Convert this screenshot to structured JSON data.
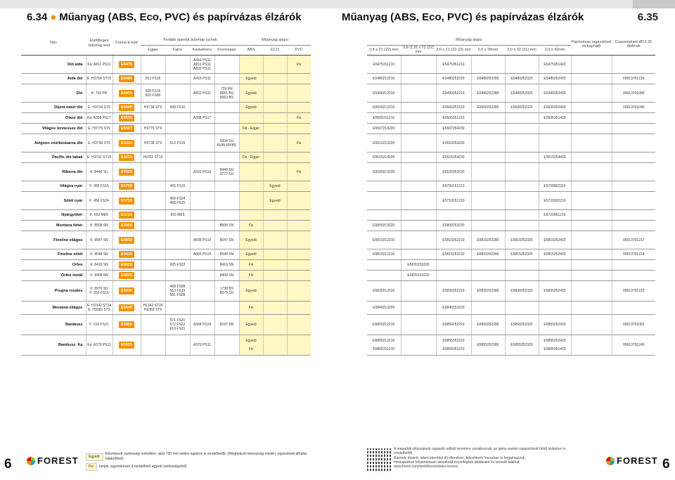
{
  "header": {
    "title_left": "Műanyag (ABS, Eco, PVC) és papírvázas élzárók",
    "section_left": "6.34",
    "title_right": "Műanyag (ABS, Eco, PVC) és papírvázas élzárók",
    "section_right": "6.35"
  },
  "left_head": {
    "nev": "Név",
    "elsodleges": "Elsődleges bútorlap kód",
    "forest": "Forest E-kód",
    "tovabbi": "További ajánlott bútorlap színek",
    "muanyag": "Műanyag alapú",
    "egger": "Egger",
    "falco": "Falco",
    "kastamonu": "Kastamonu",
    "kronospan": "Kronospan",
    "abs": "ABS",
    "eco": "ECO",
    "pvc": "PVC"
  },
  "right_head": {
    "muanyag": "Műanyag alapú",
    "c1": "0,4 x 21 (22) mm",
    "c2": "0,8 (1,0) x 21 (22) mm",
    "c3": "2,0 x 21 (22-23) mm",
    "c4": "2,0 x 28mm",
    "c5": "2,0 x 32 (31) mm",
    "c6": "2,0 x 42mm",
    "papir": "Papírvázas ragasztóval és kaphatő",
    "csavar": "Csavartakaró Ø13 25 db/levél"
  },
  "rows": [
    {
      "name": "Dió aida",
      "primary": "Ka: A811 PS11",
      "code": "E5475",
      "egger": "",
      "falco": "",
      "kasta": "A416 PS11\nA811 PS11\nA822 PS11",
      "krono": "",
      "abs": "",
      "eco": "",
      "pvc": "Fix",
      "c1": "E5475311210",
      "c2": "",
      "c3": "E5475351210",
      "c4": "",
      "c5": "",
      "c6": "E5475351420",
      "pap": "",
      "csav": ""
    },
    {
      "name": "Aida dió",
      "primary": "E: H3704 ST15",
      "code": "E5480",
      "egger": "512 FS15",
      "falco": "",
      "kasta": "A416 PS11",
      "krono": "",
      "abs": "Egyedi",
      "eco": "",
      "pvc": "",
      "c1": "E5480212210",
      "c2": "",
      "c3": "E5480252210",
      "c4": "E5480252280",
      "c5": "E5480252320",
      "c6": "E5480252420",
      "pap": "",
      "csav": "00013701216"
    },
    {
      "name": "Dió",
      "primary": "K: 729 PR",
      "code": "E5490",
      "egger": "508 FS15\n600 FS50",
      "falco": "",
      "kasta": "A822 PS11",
      "krono": "729 PR\n8061 BS\n8953 BS",
      "abs": "Egyedi",
      "eco": "",
      "pvc": "",
      "c1": "E5490212210",
      "c2": "",
      "c3": "E5490252210",
      "c4": "E5490252280",
      "c5": "E5490252320",
      "c6": "E5490252420",
      "pap": "",
      "csav": "00013701080"
    },
    {
      "name": "Dijoni natúr dió",
      "primary": "E: H3734 ST9",
      "code": "E5500",
      "egger": "H3734 ST9",
      "falco": "508 FS15",
      "kasta": "",
      "krono": "",
      "abs": "Egyedi",
      "eco": "",
      "pvc": "",
      "c1": "E5500212210",
      "c2": "",
      "c3": "E5500252210",
      "c4": "E5500252280",
      "c5": "E5500252320",
      "c6": "E5500252420",
      "pap": "",
      "csav": "00013701090"
    },
    {
      "name": "Olasz dió",
      "primary": "Ka: A398 PS17",
      "code": "E5505",
      "egger": "",
      "falco": "",
      "kasta": "A398 PS17",
      "krono": "",
      "abs": "",
      "eco": "",
      "pvc": "Fix",
      "c1": "E5505311210",
      "c2": "",
      "c3": "E5505351210",
      "c4": "",
      "c5": "",
      "c6": "E5505351420",
      "pap": "",
      "csav": ""
    },
    {
      "name": "Világos tennessee dió",
      "primary": "E: H3775 ST9",
      "code": "E5507",
      "egger": "H3775 ST9",
      "falco": "",
      "kasta": "",
      "krono": "",
      "abs": "Fix - Egger",
      "eco": "",
      "pvc": "",
      "c1": "E5507214220",
      "c2": "",
      "c3": "E5507254230",
      "c4": "",
      "c5": "",
      "c6": "",
      "pap": "",
      "csav": ""
    },
    {
      "name": "Avignon szürkésbarna dió",
      "primary": "E: H3738 ST9",
      "code": "E5510",
      "egger": "H3738 ST9",
      "falco": "512 FS15",
      "kasta": "",
      "krono": "5504 SU\n8195 SP/BS",
      "abs": "",
      "eco": "",
      "pvc": "Fix",
      "c1": "E5510213220",
      "c2": "",
      "c3": "E5510253220",
      "c4": "",
      "c5": "",
      "c6": "",
      "pap": "",
      "csav": ""
    },
    {
      "name": "Pacific dió tabak",
      "primary": "E: H3702 ST10",
      "code": "E5515",
      "egger": "H3702 ST10",
      "falco": "",
      "kasta": "",
      "krono": "",
      "abs": "Fix - Egger",
      "eco": "",
      "pvc": "",
      "c1": "E5515214220",
      "c2": "",
      "c3": "E5515254230",
      "c4": "",
      "c5": "",
      "c6": "E5515254420",
      "pap": "",
      "csav": ""
    },
    {
      "name": "Riberra dió",
      "primary": "K: 8448 SU",
      "code": "E5520",
      "egger": "",
      "falco": "",
      "kasta": "A391 PS19",
      "krono": "8448 SU\n9777 SU",
      "abs": "",
      "eco": "",
      "pvc": "Fix",
      "c1": "E5520213220",
      "c2": "",
      "c3": "E5520253220",
      "c4": "",
      "c5": "",
      "c6": "",
      "pap": "",
      "csav": ""
    },
    {
      "name": "Világos nyár",
      "primary": "F: 455 FS15",
      "code": "E5700",
      "egger": "",
      "falco": "455 FS15",
      "kasta": "",
      "krono": "",
      "abs": "",
      "eco": "Egyedi",
      "pvc": "",
      "c1": "",
      "c2": "",
      "c3": "E5700151210",
      "c4": "",
      "c5": "",
      "c6": "E5700902210",
      "pap": "",
      "csav": ""
    },
    {
      "name": "Sötét nyár",
      "primary": "F: 456 FS24",
      "code": "E5710",
      "egger": "",
      "falco": "456 FS24\n468 FS15",
      "kasta": "",
      "krono": "",
      "abs": "",
      "eco": "Egyedi",
      "pvc": "",
      "c1": "",
      "c2": "",
      "c3": "E5710151210",
      "c4": "",
      "c5": "",
      "c6": "E5710932210",
      "pap": "",
      "csav": ""
    },
    {
      "name": "Nyárgyökér",
      "primary": "F: 653 ME5",
      "code": "E5720",
      "egger": "",
      "falco": "653 ME5",
      "kasta": "",
      "krono": "",
      "abs": "",
      "eco": "",
      "pvc": "",
      "c1": "",
      "c2": "",
      "c3": "",
      "c4": "",
      "c5": "",
      "c6": "E5720951210",
      "pap": "",
      "csav": ""
    },
    {
      "name": "Montana fehér",
      "primary": "K: 8508 SN",
      "code": "E5800",
      "egger": "",
      "falco": "",
      "kasta": "",
      "krono": "8508 SN",
      "abs": "Fix",
      "eco": "",
      "pvc": "",
      "c1": "E5800213220",
      "c2": "",
      "c3": "E5800253220",
      "c4": "",
      "c5": "",
      "c6": "",
      "pap": "",
      "csav": ""
    },
    {
      "name": "Fineline világos",
      "primary": "K: 8547 SN",
      "code": "E5810",
      "egger": "",
      "falco": "",
      "kasta": "A839 PS19",
      "krono": "8547 SN",
      "abs": "Egyedi",
      "eco": "",
      "pvc": "",
      "c1": "E5810212210",
      "c2": "",
      "c3": "E5810252210",
      "c4": "E5810252280",
      "c5": "E5810252320",
      "c6": "E5810252420",
      "pap": "",
      "csav": "00013701217"
    },
    {
      "name": "Fineline sötét",
      "primary": "K: 8548 SN",
      "code": "E5815",
      "egger": "",
      "falco": "",
      "kasta": "A866 PS19",
      "krono": "8548 SN",
      "abs": "Egyedi",
      "eco": "",
      "pvc": "",
      "c1": "E5815212210",
      "c2": "",
      "c3": "E5815252210",
      "c4": "E5815252280",
      "c5": "E5815252320",
      "c6": "E5815252420",
      "pap": "",
      "csav": "00013701218"
    },
    {
      "name": "Orfeo",
      "primary": "K: 8410 SN",
      "code": "E5820",
      "egger": "",
      "falco": "605 FS22",
      "kasta": "",
      "krono": "8410 SN",
      "abs": "Fix",
      "eco": "",
      "pvc": "",
      "c1": "",
      "c2": "E5820233220",
      "c3": "",
      "c4": "",
      "c5": "",
      "c6": "",
      "pap": "",
      "csav": ""
    },
    {
      "name": "Orfeo metál",
      "primary": "K: 8409 SN",
      "code": "E5825",
      "egger": "",
      "falco": "",
      "kasta": "",
      "krono": "8409 SN",
      "abs": "Fix",
      "eco": "",
      "pvc": "",
      "c1": "",
      "c2": "E5825233220",
      "c3": "",
      "c4": "",
      "c5": "",
      "c6": "",
      "pap": "",
      "csav": ""
    },
    {
      "name": "Prugna rosales",
      "primary": "K: 8979 SU\nF: 553 FS15",
      "code": "E5830",
      "egger": "",
      "falco": "408 FS08\n553 FS15\n581 FS08",
      "kasta": "",
      "krono": "1738 BS\n8979 SU",
      "abs": "Egyedi",
      "eco": "",
      "pvc": "",
      "c1": "E5830212210",
      "c2": "",
      "c3": "E5830252210",
      "c4": "E5830252280",
      "c5": "E5830252320",
      "c6": "E5830252420",
      "pap": "",
      "csav": "00013701219"
    },
    {
      "name": "Montana világos",
      "primary": "E: H1342 ST24\nE: H3382 ST9",
      "code": "E5840",
      "egger": "H1342 ST24\nH3382 ST9",
      "falco": "",
      "kasta": "",
      "krono": "",
      "abs": "Fix",
      "eco": "",
      "pvc": "",
      "c1": "E5840213220",
      "c2": "",
      "c3": "E5840253220",
      "c4": "",
      "c5": "",
      "c6": "",
      "pap": "",
      "csav": ""
    },
    {
      "name": "Bambusz",
      "primary": "F: 610 FS21",
      "code": "E5850",
      "egger": "",
      "falco": "571 FS31\n572 FS22\n610 FS21",
      "kasta": "A394 PS19",
      "krono": "8197 SN",
      "abs": "Egyedi",
      "eco": "",
      "pvc": "",
      "c1": "E5850212210",
      "c2": "",
      "c3": "E5850252210",
      "c4": "E5850252280",
      "c5": "E5850252320",
      "c6": "E5850252420",
      "pap": "",
      "csav": "00013701081"
    },
    {
      "name": "Bambusz_Ka",
      "primary": "Ka: A379 PS11",
      "code": "E5855",
      "egger": "",
      "falco": "",
      "kasta": "A379 PS11",
      "krono": "",
      "abs": "Egyedi\n\nFix",
      "eco": "",
      "pvc": "",
      "c1": "E5855212210\n\nE5855311210",
      "c2": "",
      "c3": "E5855252210\n\nE5855351210",
      "c4": "E5855252280",
      "c5": "E5855252320",
      "c6": "E5855252420\n\nE5855351420",
      "pap": "",
      "csav": "00013701245"
    }
  ],
  "legend": {
    "egyedi_label": "Egyedi:",
    "egyedi_text": "felszélezett szélességi méretben, akár 720 mm széles lapokon is rendelhetők. (Meghelező mennyiség esetén, egyeztetett átfutási határidővel)",
    "fix_label": "Fix:",
    "fix_text": "kérjük, egyeztessen a rendelhető egyedi szélességekről."
  },
  "footer": {
    "page_left": "6",
    "page_right": "6",
    "logo": "FOREST",
    "notice_1": "A megadott cikkszámok ragasztó nélküli termékre vonatkoznak, az igény esetén ragasztózott (kód) kiviteben is rendelhetők.",
    "notice_2": "Bármely élzárót, tekercsbontást díj ellenében, felszélezés hosszban is forgalmazzuk.",
    "notice_3": "Honlapunkon folyamatosan aktualizált összefoglaló táblázatot és keresőt találhat",
    "notice_4": "www.forest.com/web/forest/elzaro-kereso"
  }
}
